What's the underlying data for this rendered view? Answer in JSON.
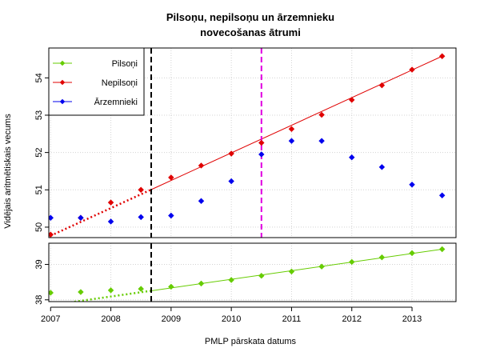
{
  "chart_data": {
    "type": "scatter",
    "title_lines": [
      "Pilsoņu, nepilsoņu un ārzemnieku",
      "novecošanas ātrumi"
    ],
    "xlabel": "PMLP pārskata datums",
    "ylabel": "Vidējais aritmētiskais vecums",
    "x_ticks": [
      2007,
      2008,
      2009,
      2010,
      2011,
      2012,
      2013
    ],
    "xlim": [
      2006.97,
      2013.73
    ],
    "grid": true,
    "legend_position": "top-left",
    "panels": [
      {
        "name": "upper",
        "ylim": [
          49.72,
          54.8
        ],
        "y_ticks": [
          50,
          51,
          52,
          53,
          54
        ],
        "series_keys": [
          "nepilsoni",
          "arzemnieki"
        ],
        "vlines": [
          {
            "x": 2008.67,
            "color": "#000000"
          },
          {
            "x": 2010.5,
            "color": "#e000e0"
          }
        ]
      },
      {
        "name": "lower",
        "ylim": [
          37.95,
          39.6
        ],
        "y_ticks": [
          38,
          39
        ],
        "series_keys": [
          "pilsoni"
        ],
        "vlines": [
          {
            "x": 2008.67,
            "color": "#000000"
          }
        ]
      }
    ],
    "series": [
      {
        "key": "pilsoni",
        "name": "Pilsoņi",
        "color": "#66cc00",
        "x": [
          2007,
          2007.5,
          2008,
          2008.5,
          2009,
          2009.5,
          2010,
          2010.5,
          2011,
          2011.5,
          2012,
          2012.5,
          2013,
          2013.5
        ],
        "y": [
          38.2,
          38.22,
          38.27,
          38.31,
          38.37,
          38.46,
          38.56,
          38.68,
          38.8,
          38.94,
          39.07,
          39.2,
          39.32,
          39.43
        ],
        "trend": {
          "x1": 2007,
          "y1": 37.85,
          "x2": 2013.5,
          "y2": 39.43,
          "break_x": 2008.67
        }
      },
      {
        "key": "nepilsoni",
        "name": "Nepilsoņi",
        "color": "#e00000",
        "x": [
          2007,
          2007.5,
          2008,
          2008.5,
          2009,
          2009.5,
          2010,
          2010.5,
          2011,
          2011.5,
          2012,
          2012.5,
          2013,
          2013.5
        ],
        "y": [
          49.8,
          50.25,
          50.66,
          51.0,
          51.33,
          51.65,
          51.97,
          52.26,
          52.63,
          53.01,
          53.41,
          53.8,
          54.22,
          54.58
        ],
        "trend": {
          "x1": 2007,
          "y1": 49.77,
          "x2": 2013.5,
          "y2": 54.58,
          "break_x": 2008.67
        }
      },
      {
        "key": "arzemnieki",
        "name": "Ārzemnieki",
        "color": "#0000ee",
        "x": [
          2007,
          2007.5,
          2008,
          2008.5,
          2009,
          2009.5,
          2010,
          2010.5,
          2011,
          2011.5,
          2012,
          2012.5,
          2013,
          2013.5
        ],
        "y": [
          50.25,
          50.25,
          50.15,
          50.27,
          50.31,
          50.7,
          51.23,
          51.95,
          52.31,
          52.31,
          51.87,
          51.61,
          51.14,
          50.85
        ]
      }
    ]
  }
}
